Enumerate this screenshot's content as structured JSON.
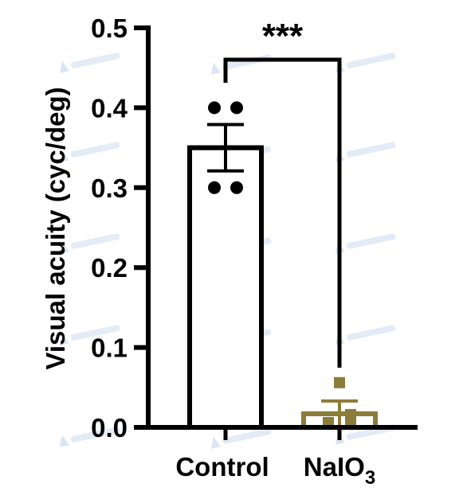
{
  "chart_data": {
    "type": "bar",
    "title": "",
    "ylabel": "Visual acuity (cyc/deg)",
    "xlabel": "",
    "ylim": [
      0,
      0.5
    ],
    "yticks": [
      0.0,
      0.1,
      0.2,
      0.3,
      0.4,
      0.5
    ],
    "ytick_labels": [
      "0.0",
      "0.1",
      "0.2",
      "0.3",
      "0.4",
      "0.5"
    ],
    "categories": [
      {
        "label": "Control",
        "sub": ""
      },
      {
        "label": "NaIO",
        "sub": "3"
      }
    ],
    "series": [
      {
        "values": [
          0.35,
          0.017
        ],
        "sem": [
          0.029,
          0.016
        ],
        "points": [
          [
            0.4,
            0.4,
            0.3,
            0.3
          ],
          [
            0.05,
            0.0,
            0.0,
            0.01
          ]
        ],
        "markers": [
          "circle",
          "square"
        ],
        "colors": [
          "#000000",
          "#8c7c3a"
        ]
      }
    ],
    "significance": {
      "label": "***",
      "between": [
        0,
        1
      ]
    },
    "grid": false,
    "legend": "none"
  }
}
